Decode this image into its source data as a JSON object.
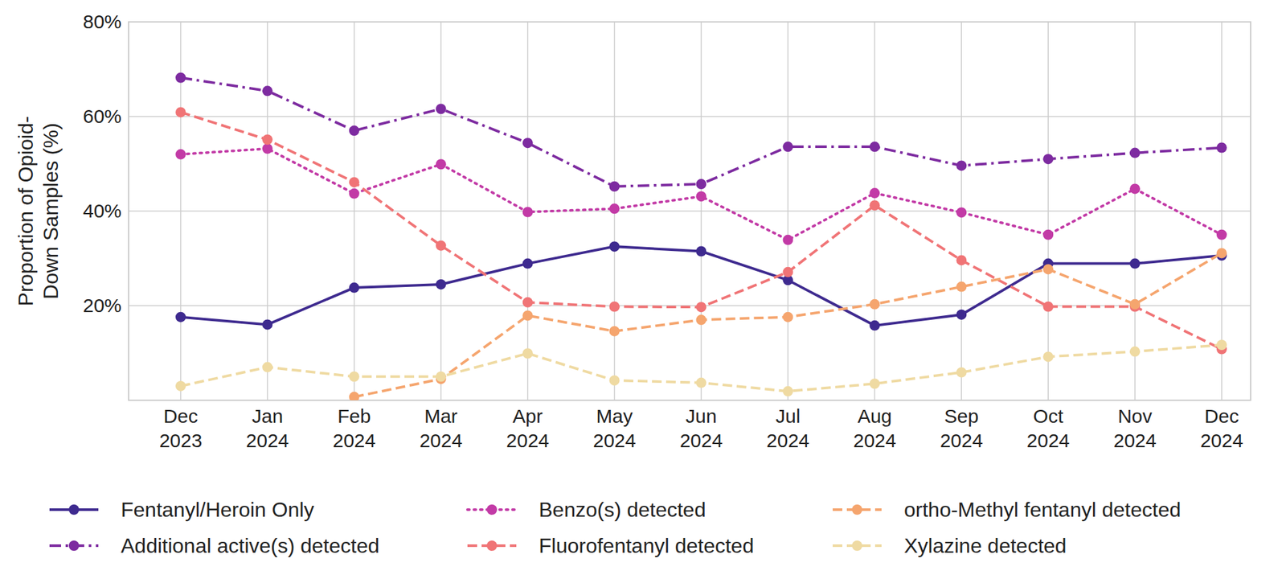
{
  "chart_data": {
    "type": "line",
    "y_label": "Proportion of Opioid-\nDown Samples (%)",
    "categories": [
      "Dec 2023",
      "Jan 2024",
      "Feb 2024",
      "Mar 2024",
      "Apr 2024",
      "May 2024",
      "Jun 2024",
      "Jul 2024",
      "Aug 2024",
      "Sep 2024",
      "Oct 2024",
      "Nov 2024",
      "Dec 2024"
    ],
    "series": [
      {
        "name": "Fentanyl/Heroin Only",
        "color": "#3e2a8f",
        "line_style": "solid",
        "marker": "o",
        "values": [
          17.6,
          16.0,
          23.8,
          24.5,
          28.9,
          32.5,
          31.5,
          25.4,
          15.8,
          18.1,
          28.9,
          28.9,
          30.6
        ]
      },
      {
        "name": "Additional active(s) detected",
        "color": "#7d2ba0",
        "line_style": "dashdot",
        "marker": "o",
        "values": [
          68.2,
          65.4,
          57.0,
          61.6,
          54.4,
          45.2,
          45.7,
          53.6,
          53.6,
          49.6,
          51.0,
          52.3,
          53.4
        ]
      },
      {
        "name": "Benzo(s) detected",
        "color": "#c23aa6",
        "line_style": "dotted",
        "marker": "o",
        "values": [
          52.0,
          53.2,
          43.7,
          49.9,
          39.8,
          40.5,
          43.1,
          33.9,
          43.8,
          39.7,
          35.0,
          44.7,
          35.0
        ]
      },
      {
        "name": "Fluorofentanyl detected",
        "color": "#f07476",
        "line_style": "dashed",
        "marker": "o",
        "values": [
          60.9,
          55.1,
          46.1,
          32.7,
          20.7,
          19.8,
          19.7,
          27.1,
          41.2,
          29.6,
          19.8,
          19.8,
          10.8
        ]
      },
      {
        "name": "ortho-Methyl fentanyl detected",
        "color": "#f5a56e",
        "line_style": "dashed",
        "marker": "o",
        "values": [
          null,
          null,
          0.7,
          4.5,
          17.9,
          14.6,
          17.0,
          17.6,
          20.3,
          24.0,
          27.7,
          20.3,
          31.1
        ]
      },
      {
        "name": "Xylazine detected",
        "color": "#efdaa2",
        "line_style": "dashed",
        "marker": "o",
        "values": [
          3.0,
          7.0,
          5.0,
          5.0,
          9.9,
          4.2,
          3.7,
          1.9,
          3.5,
          5.9,
          9.2,
          10.3,
          11.7
        ]
      }
    ],
    "ylim": [
      0,
      80
    ],
    "yticks": [
      {
        "value": 20,
        "label": "20%"
      },
      {
        "value": 40,
        "label": "40%"
      },
      {
        "value": 60,
        "label": "60%"
      },
      {
        "value": 80,
        "label": "80%"
      }
    ],
    "grid": true,
    "legend": "bottom"
  }
}
